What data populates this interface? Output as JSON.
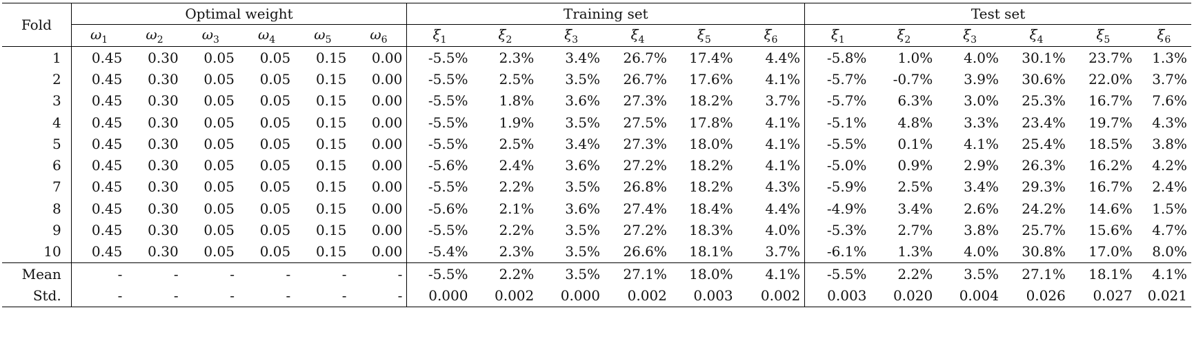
{
  "table": {
    "header": {
      "fold": "Fold",
      "groups": [
        "Optimal weight",
        "Training set",
        "Test set"
      ],
      "weight_symbols": [
        {
          "sym": "ω",
          "sub": "1"
        },
        {
          "sym": "ω",
          "sub": "2"
        },
        {
          "sym": "ω",
          "sub": "3"
        },
        {
          "sym": "ω",
          "sub": "4"
        },
        {
          "sym": "ω",
          "sub": "5"
        },
        {
          "sym": "ω",
          "sub": "6"
        }
      ],
      "xi_symbols": [
        {
          "sym": "ξ",
          "sub": "1"
        },
        {
          "sym": "ξ",
          "sub": "2"
        },
        {
          "sym": "ξ",
          "sub": "3"
        },
        {
          "sym": "ξ",
          "sub": "4"
        },
        {
          "sym": "ξ",
          "sub": "5"
        },
        {
          "sym": "ξ",
          "sub": "6"
        }
      ]
    },
    "rows": [
      {
        "fold": "1",
        "weights": [
          "0.45",
          "0.30",
          "0.05",
          "0.05",
          "0.15",
          "0.00"
        ],
        "train": [
          "-5.5%",
          "2.3%",
          "3.4%",
          "26.7%",
          "17.4%",
          "4.4%"
        ],
        "test": [
          "-5.8%",
          "1.0%",
          "4.0%",
          "30.1%",
          "23.7%",
          "1.3%"
        ]
      },
      {
        "fold": "2",
        "weights": [
          "0.45",
          "0.30",
          "0.05",
          "0.05",
          "0.15",
          "0.00"
        ],
        "train": [
          "-5.5%",
          "2.5%",
          "3.5%",
          "26.7%",
          "17.6%",
          "4.1%"
        ],
        "test": [
          "-5.7%",
          "-0.7%",
          "3.9%",
          "30.6%",
          "22.0%",
          "3.7%"
        ]
      },
      {
        "fold": "3",
        "weights": [
          "0.45",
          "0.30",
          "0.05",
          "0.05",
          "0.15",
          "0.00"
        ],
        "train": [
          "-5.5%",
          "1.8%",
          "3.6%",
          "27.3%",
          "18.2%",
          "3.7%"
        ],
        "test": [
          "-5.7%",
          "6.3%",
          "3.0%",
          "25.3%",
          "16.7%",
          "7.6%"
        ]
      },
      {
        "fold": "4",
        "weights": [
          "0.45",
          "0.30",
          "0.05",
          "0.05",
          "0.15",
          "0.00"
        ],
        "train": [
          "-5.5%",
          "1.9%",
          "3.5%",
          "27.5%",
          "17.8%",
          "4.1%"
        ],
        "test": [
          "-5.1%",
          "4.8%",
          "3.3%",
          "23.4%",
          "19.7%",
          "4.3%"
        ]
      },
      {
        "fold": "5",
        "weights": [
          "0.45",
          "0.30",
          "0.05",
          "0.05",
          "0.15",
          "0.00"
        ],
        "train": [
          "-5.5%",
          "2.5%",
          "3.4%",
          "27.3%",
          "18.0%",
          "4.1%"
        ],
        "test": [
          "-5.5%",
          "0.1%",
          "4.1%",
          "25.4%",
          "18.5%",
          "3.8%"
        ]
      },
      {
        "fold": "6",
        "weights": [
          "0.45",
          "0.30",
          "0.05",
          "0.05",
          "0.15",
          "0.00"
        ],
        "train": [
          "-5.6%",
          "2.4%",
          "3.6%",
          "27.2%",
          "18.2%",
          "4.1%"
        ],
        "test": [
          "-5.0%",
          "0.9%",
          "2.9%",
          "26.3%",
          "16.2%",
          "4.2%"
        ]
      },
      {
        "fold": "7",
        "weights": [
          "0.45",
          "0.30",
          "0.05",
          "0.05",
          "0.15",
          "0.00"
        ],
        "train": [
          "-5.5%",
          "2.2%",
          "3.5%",
          "26.8%",
          "18.2%",
          "4.3%"
        ],
        "test": [
          "-5.9%",
          "2.5%",
          "3.4%",
          "29.3%",
          "16.7%",
          "2.4%"
        ]
      },
      {
        "fold": "8",
        "weights": [
          "0.45",
          "0.30",
          "0.05",
          "0.05",
          "0.15",
          "0.00"
        ],
        "train": [
          "-5.6%",
          "2.1%",
          "3.6%",
          "27.4%",
          "18.4%",
          "4.4%"
        ],
        "test": [
          "-4.9%",
          "3.4%",
          "2.6%",
          "24.2%",
          "14.6%",
          "1.5%"
        ]
      },
      {
        "fold": "9",
        "weights": [
          "0.45",
          "0.30",
          "0.05",
          "0.05",
          "0.15",
          "0.00"
        ],
        "train": [
          "-5.5%",
          "2.2%",
          "3.5%",
          "27.2%",
          "18.3%",
          "4.0%"
        ],
        "test": [
          "-5.3%",
          "2.7%",
          "3.8%",
          "25.7%",
          "15.6%",
          "4.7%"
        ]
      },
      {
        "fold": "10",
        "weights": [
          "0.45",
          "0.30",
          "0.05",
          "0.05",
          "0.15",
          "0.00"
        ],
        "train": [
          "-5.4%",
          "2.3%",
          "3.5%",
          "26.6%",
          "18.1%",
          "3.7%"
        ],
        "test": [
          "-6.1%",
          "1.3%",
          "4.0%",
          "30.8%",
          "17.0%",
          "8.0%"
        ]
      }
    ],
    "summary": [
      {
        "fold": "Mean",
        "weights": [
          "-",
          "-",
          "-",
          "-",
          "-",
          "-"
        ],
        "train": [
          "-5.5%",
          "2.2%",
          "3.5%",
          "27.1%",
          "18.0%",
          "4.1%"
        ],
        "test": [
          "-5.5%",
          "2.2%",
          "3.5%",
          "27.1%",
          "18.1%",
          "4.1%"
        ]
      },
      {
        "fold": "Std.",
        "weights": [
          "-",
          "-",
          "-",
          "-",
          "-",
          "-"
        ],
        "train": [
          "0.000",
          "0.002",
          "0.000",
          "0.002",
          "0.003",
          "0.002"
        ],
        "test": [
          "0.003",
          "0.020",
          "0.004",
          "0.026",
          "0.027",
          "0.021"
        ]
      }
    ]
  }
}
